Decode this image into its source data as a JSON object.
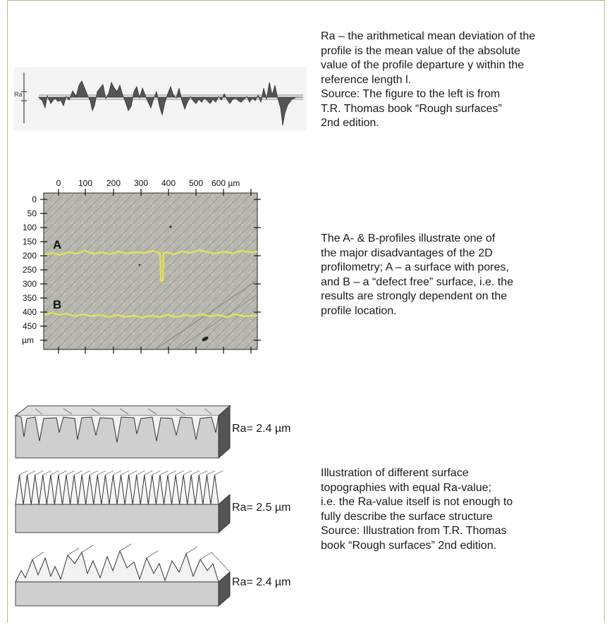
{
  "section1": {
    "lines": [
      "Ra – the arithmetical mean deviation of the",
      "profile is the mean value of the absolute",
      "value of the profile departure y within the",
      "reference length l.",
      "Source: The figure to the left is from",
      "T.R. Thomas book “Rough surfaces”",
      "2nd edition."
    ],
    "figure_label": "Ra"
  },
  "section2": {
    "lines": [
      "The A- & B-profiles illustrate one of",
      "the major disadvantages of the 2D",
      "profilometry;  A – a surface with pores,",
      "and B – a “defect free” surface, i.e. the",
      "results are strongly dependent on the",
      "profile location."
    ],
    "x_ticks": [
      "0",
      "100",
      "200",
      "300",
      "400",
      "500",
      "600 µm"
    ],
    "y_ticks": [
      "0",
      "50",
      "100",
      "150",
      "200",
      "250",
      "300",
      "350",
      "400",
      "450"
    ],
    "y_unit": "µm",
    "profile_labels": [
      "A",
      "B"
    ],
    "profile_color": "#e6e650"
  },
  "section3": {
    "ra_labels": [
      "Ra= 2.4 µm",
      "Ra= 2.5 µm",
      "Ra= 2.4 µm"
    ],
    "lines": [
      "Illustration of different surface",
      "topographies with equal Ra-value;",
      "i.e. the Ra-value itself is not enough to",
      "fully describe the surface structure",
      "Source: Illustration from T.R. Thomas",
      "book “Rough surfaces” 2nd edition."
    ]
  }
}
